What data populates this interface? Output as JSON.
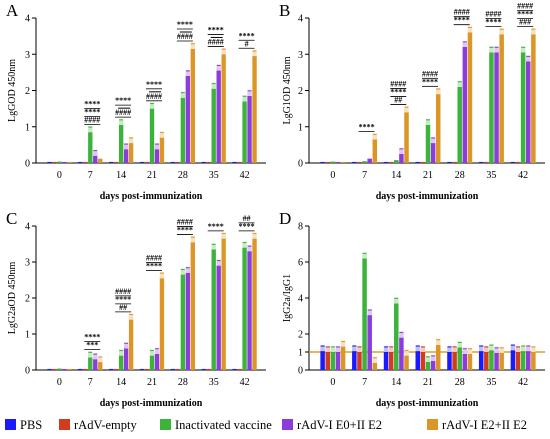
{
  "colors": {
    "PBS": "#1a1aff",
    "rAdV-empty": "#d23c1e",
    "Inactivated vaccine": "#3cb43c",
    "rAdV-I E0+II E2": "#8c3cdc",
    "rAdV-I E2+II E2": "#dc9628"
  },
  "legend": {
    "items": [
      {
        "label": "PBS",
        "color_key": "PBS"
      },
      {
        "label": "rAdV-empty",
        "color_key": "rAdV-empty"
      },
      {
        "label": "Inactivated vaccine",
        "color_key": "Inactivated vaccine"
      },
      {
        "label": "rAdV-I  E0+II  E2",
        "color_key": "rAdV-I E0+II E2"
      },
      {
        "label": "rAdV-I  E2+II  E2",
        "color_key": "rAdV-I E2+II E2"
      }
    ]
  },
  "chart_data": [
    {
      "panel": "A",
      "type": "bar",
      "ylabel": "LgGOD 450nm",
      "xlabel": "days post-immunization",
      "categories": [
        "0",
        "7",
        "14",
        "21",
        "28",
        "35",
        "42"
      ],
      "ylim": [
        0,
        4
      ],
      "yticks": [
        0,
        1,
        2,
        3,
        4
      ],
      "series": [
        {
          "key": "PBS",
          "values": [
            0.03,
            0.03,
            0.03,
            0.03,
            0.03,
            0.03,
            0.03
          ]
        },
        {
          "key": "rAdV-empty",
          "values": [
            0.03,
            0.03,
            0.03,
            0.03,
            0.03,
            0.03,
            0.03
          ]
        },
        {
          "key": "Inactivated vaccine",
          "values": [
            0.04,
            0.85,
            1.05,
            1.5,
            1.8,
            2.05,
            1.7
          ]
        },
        {
          "key": "rAdV-I E0+II E2",
          "values": [
            0.03,
            0.2,
            0.38,
            0.38,
            2.4,
            2.55,
            1.85
          ]
        },
        {
          "key": "rAdV-I E2+II E2",
          "values": [
            0.03,
            0.12,
            0.55,
            0.7,
            3.15,
            3.0,
            2.95
          ]
        }
      ],
      "annotations": [
        {
          "day": "7",
          "lines": [
            "****",
            "****",
            "####"
          ]
        },
        {
          "day": "14",
          "lines": [
            "****",
            "",
            "####"
          ]
        },
        {
          "day": "21",
          "lines": [
            "****",
            "",
            "####"
          ]
        },
        {
          "day": "28",
          "lines": [
            "****",
            "",
            "####"
          ]
        },
        {
          "day": "35",
          "lines": [
            "****",
            "",
            "####"
          ]
        },
        {
          "day": "42",
          "lines": [
            "****",
            "#"
          ]
        }
      ]
    },
    {
      "panel": "B",
      "type": "bar",
      "ylabel": "LgG1OD 450nm",
      "xlabel": "days post-immunization",
      "categories": [
        "0",
        "7",
        "14",
        "21",
        "28",
        "35",
        "42"
      ],
      "ylim": [
        0,
        4
      ],
      "yticks": [
        0,
        1,
        2,
        3,
        4
      ],
      "series": [
        {
          "key": "PBS",
          "values": [
            0.03,
            0.03,
            0.03,
            0.03,
            0.03,
            0.03,
            0.03
          ]
        },
        {
          "key": "rAdV-empty",
          "values": [
            0.03,
            0.03,
            0.03,
            0.03,
            0.03,
            0.03,
            0.03
          ]
        },
        {
          "key": "Inactivated vaccine",
          "values": [
            0.04,
            0.05,
            0.08,
            1.05,
            2.1,
            3.05,
            3.05
          ]
        },
        {
          "key": "rAdV-I E0+II E2",
          "values": [
            0.03,
            0.12,
            0.25,
            0.55,
            3.2,
            3.05,
            2.8
          ]
        },
        {
          "key": "rAdV-I E2+II E2",
          "values": [
            0.03,
            0.65,
            1.4,
            1.9,
            3.6,
            3.55,
            3.55
          ]
        }
      ],
      "annotations": [
        {
          "day": "7",
          "lines": [
            "****"
          ]
        },
        {
          "day": "14",
          "lines": [
            "####",
            "****",
            "##"
          ]
        },
        {
          "day": "21",
          "lines": [
            "####",
            "****"
          ]
        },
        {
          "day": "28",
          "lines": [
            "####",
            "****"
          ]
        },
        {
          "day": "35",
          "lines": [
            "####",
            "****"
          ]
        },
        {
          "day": "42",
          "lines": [
            "####",
            "****",
            "###"
          ]
        }
      ]
    },
    {
      "panel": "C",
      "type": "bar",
      "ylabel": "LgG2aOD 450nm",
      "xlabel": "days post-immunization",
      "categories": [
        "0",
        "7",
        "14",
        "21",
        "28",
        "35",
        "42"
      ],
      "ylim": [
        0,
        4
      ],
      "yticks": [
        0,
        1,
        2,
        3,
        4
      ],
      "series": [
        {
          "key": "PBS",
          "values": [
            0.03,
            0.03,
            0.03,
            0.03,
            0.03,
            0.03,
            0.03
          ]
        },
        {
          "key": "rAdV-empty",
          "values": [
            0.03,
            0.03,
            0.03,
            0.03,
            0.03,
            0.03,
            0.03
          ]
        },
        {
          "key": "Inactivated vaccine",
          "values": [
            0.04,
            0.35,
            0.4,
            0.4,
            2.65,
            3.35,
            3.4
          ]
        },
        {
          "key": "rAdV-I E0+II E2",
          "values": [
            0.03,
            0.3,
            0.6,
            0.45,
            2.7,
            2.9,
            3.3
          ]
        },
        {
          "key": "rAdV-I E2+II E2",
          "values": [
            0.03,
            0.22,
            1.4,
            2.55,
            3.55,
            3.65,
            3.65
          ]
        }
      ],
      "annotations": [
        {
          "day": "7",
          "lines": [
            "****",
            "***"
          ]
        },
        {
          "day": "14",
          "lines": [
            "####",
            "****",
            "##"
          ]
        },
        {
          "day": "21",
          "lines": [
            "####",
            "****"
          ]
        },
        {
          "day": "28",
          "lines": [
            "####",
            "****"
          ]
        },
        {
          "day": "35",
          "lines": [
            "****"
          ]
        },
        {
          "day": "42",
          "lines": [
            "##",
            "****"
          ]
        }
      ]
    },
    {
      "panel": "D",
      "type": "bar",
      "ylabel": "IgG2a/IgG1",
      "xlabel": "days post-immunization",
      "categories": [
        "0",
        "7",
        "14",
        "21",
        "28",
        "35",
        "42"
      ],
      "ylim": [
        0,
        8
      ],
      "yticks": [
        0,
        2,
        4,
        6,
        8
      ],
      "yticks_minor": [
        1
      ],
      "reference_line": 1,
      "series": [
        {
          "key": "PBS",
          "values": [
            1.05,
            1.05,
            1.0,
            1.05,
            1.0,
            1.05,
            1.1
          ]
        },
        {
          "key": "rAdV-empty",
          "values": [
            1.0,
            1.0,
            1.0,
            1.0,
            1.0,
            1.0,
            1.0
          ]
        },
        {
          "key": "Inactivated vaccine",
          "values": [
            1.0,
            6.2,
            3.7,
            0.45,
            1.25,
            1.1,
            1.05
          ]
        },
        {
          "key": "rAdV-I E0+II E2",
          "values": [
            1.0,
            3.05,
            1.8,
            0.5,
            0.9,
            0.95,
            1.05
          ]
        },
        {
          "key": "rAdV-I E2+II E2",
          "values": [
            1.3,
            0.4,
            0.8,
            1.4,
            0.9,
            0.95,
            1.0
          ]
        }
      ],
      "annotations": []
    }
  ]
}
